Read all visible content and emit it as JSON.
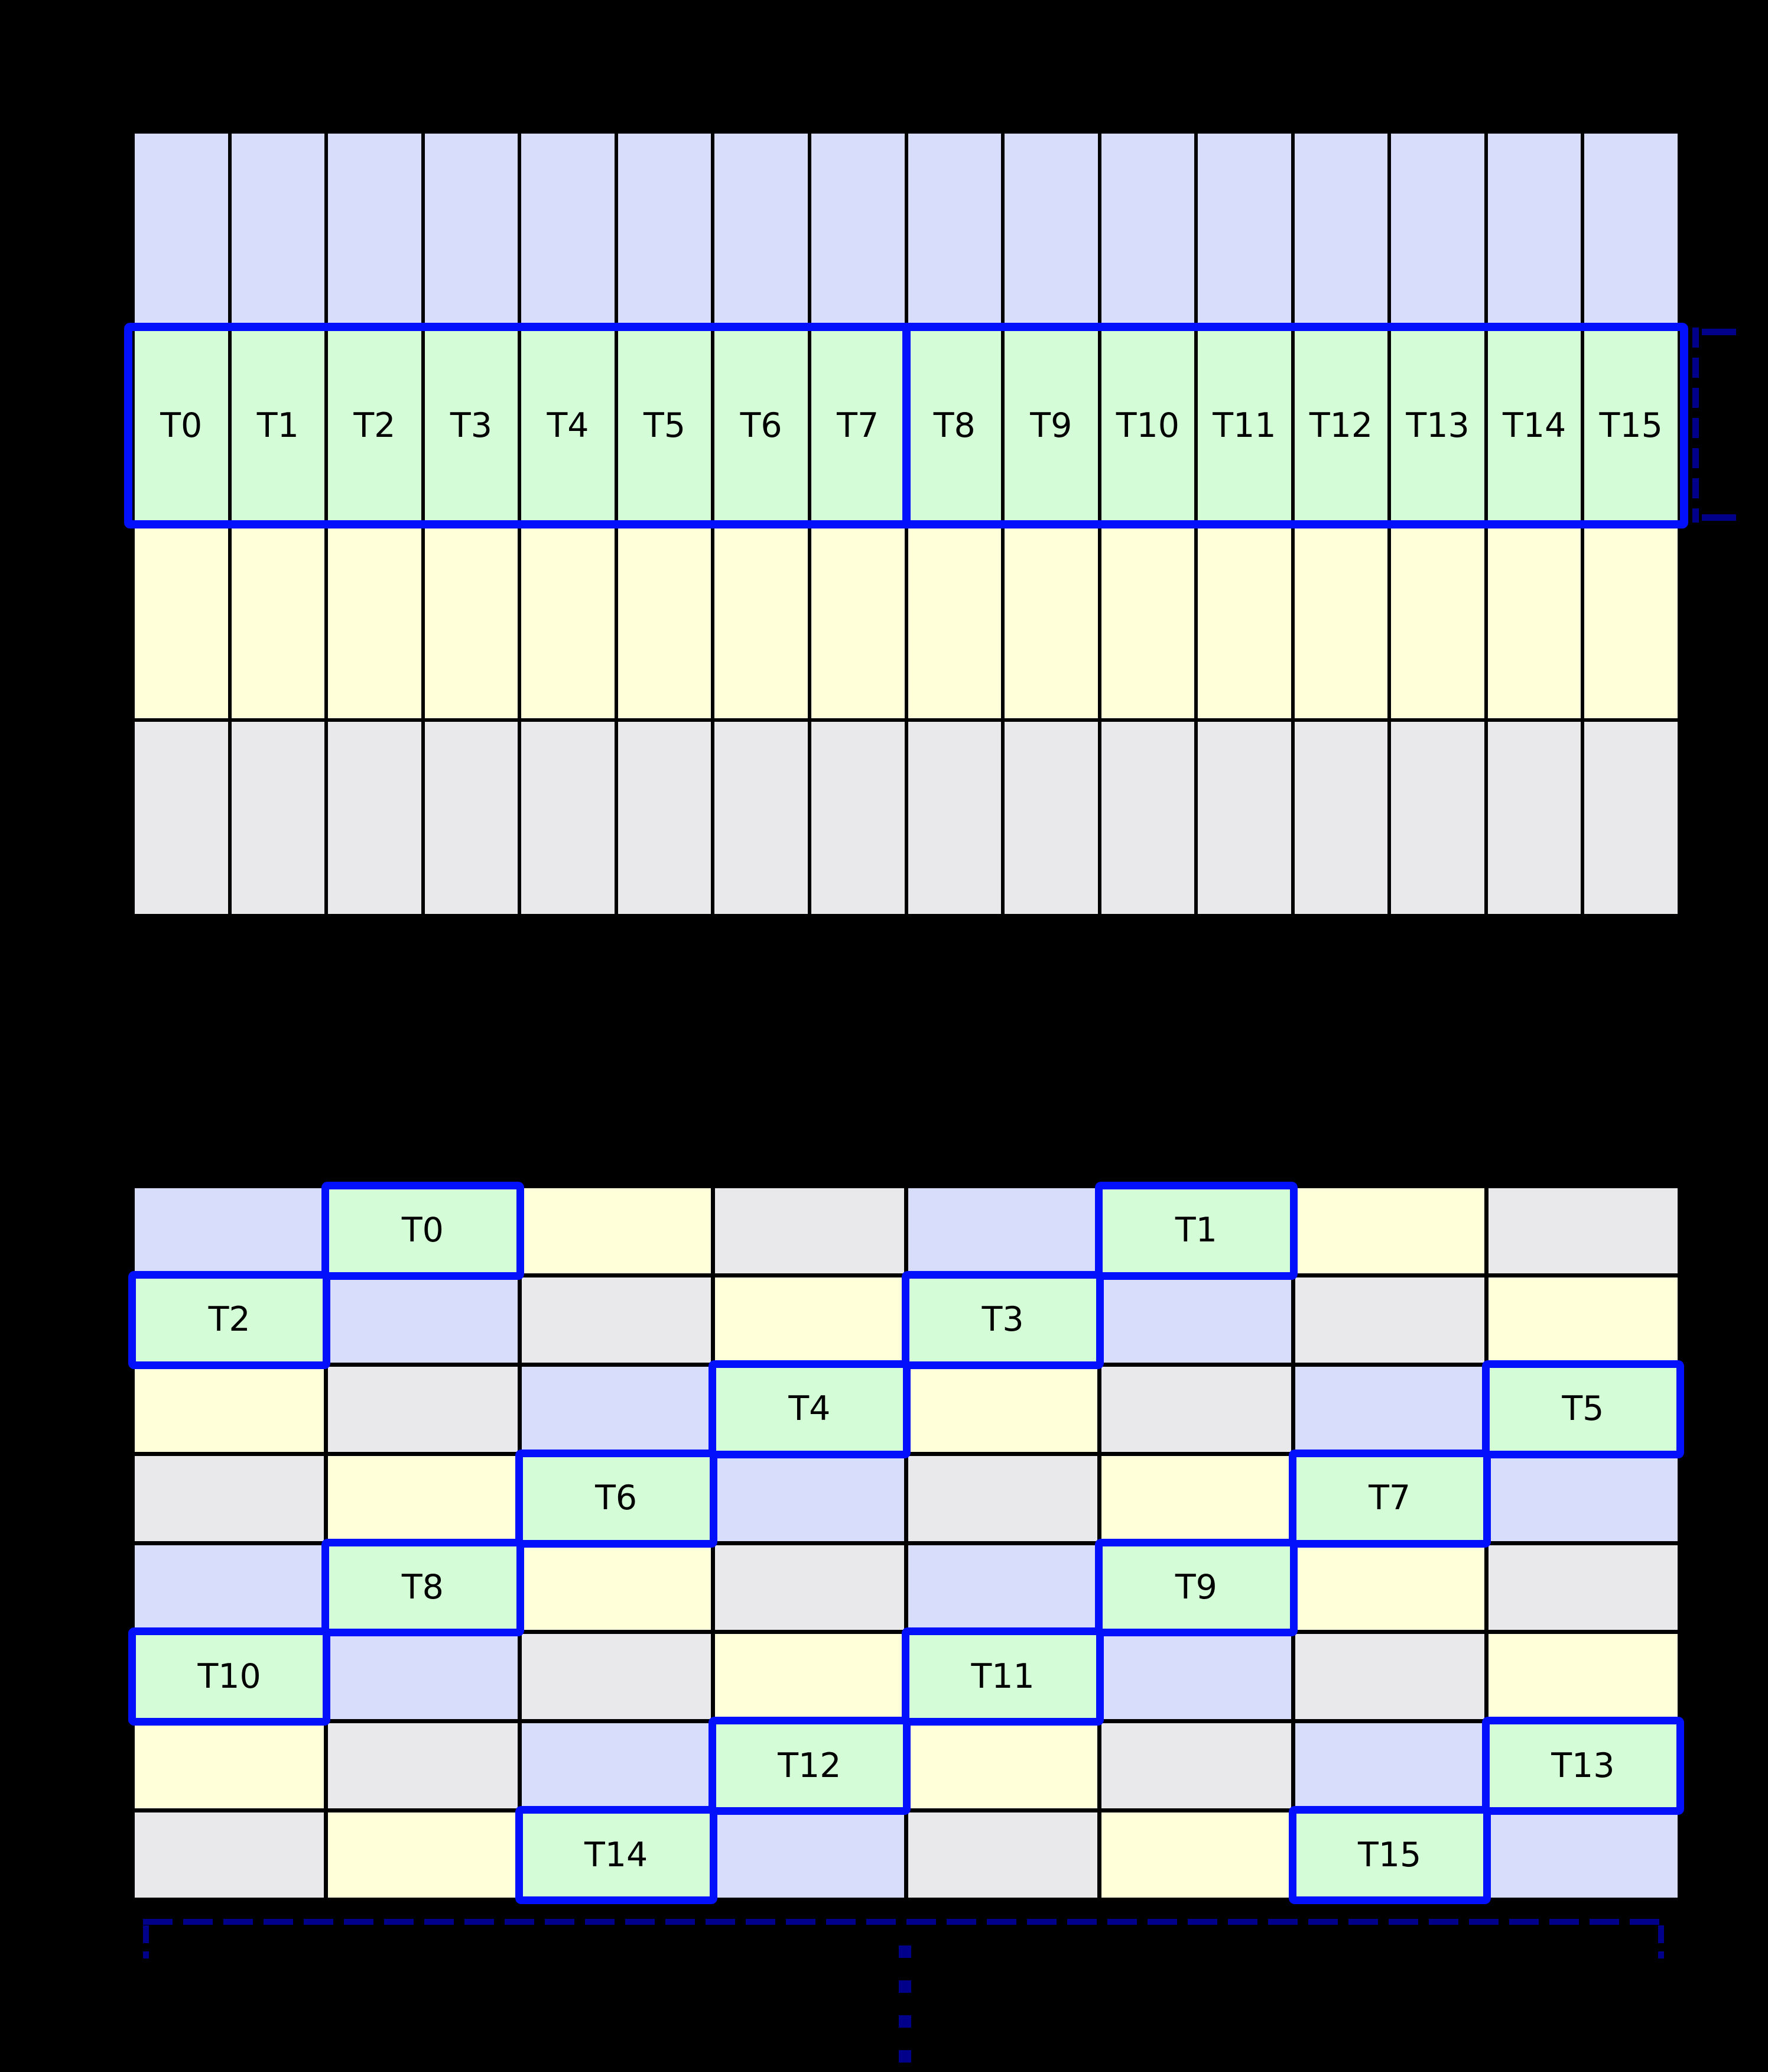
{
  "colors": {
    "background": "#000000",
    "grid_line": "#000000",
    "lavender": "#d8ddfb",
    "green": "#d4fcd7",
    "yellow": "#ffffda",
    "gray": "#e9e9ec",
    "highlight_border": "#0210fc",
    "annotation_navy": "#00008b",
    "label_text": "#000000"
  },
  "top_grid": {
    "rows": 4,
    "cols": 16,
    "row_colors": [
      "lavender",
      "green",
      "yellow",
      "gray"
    ],
    "thread_row_index": 1,
    "thread_labels": [
      "T0",
      "T1",
      "T2",
      "T3",
      "T4",
      "T5",
      "T6",
      "T7",
      "T8",
      "T9",
      "T10",
      "T11",
      "T12",
      "T13",
      "T14",
      "T15"
    ],
    "highlight": {
      "covers_row": 1,
      "split_after_label": "T7"
    },
    "right_bracket": {
      "style": "dashed",
      "spans": "thread-row-height"
    }
  },
  "bottom_grid": {
    "rows": 8,
    "cols": 8,
    "color_matrix": [
      [
        "lavender",
        "green",
        "yellow",
        "gray",
        "lavender",
        "green",
        "yellow",
        "gray"
      ],
      [
        "green",
        "lavender",
        "gray",
        "yellow",
        "green",
        "lavender",
        "gray",
        "yellow"
      ],
      [
        "yellow",
        "gray",
        "lavender",
        "green",
        "yellow",
        "gray",
        "lavender",
        "green"
      ],
      [
        "gray",
        "yellow",
        "green",
        "lavender",
        "gray",
        "yellow",
        "green",
        "lavender"
      ],
      [
        "lavender",
        "green",
        "yellow",
        "gray",
        "lavender",
        "green",
        "yellow",
        "gray"
      ],
      [
        "green",
        "lavender",
        "gray",
        "yellow",
        "green",
        "lavender",
        "gray",
        "yellow"
      ],
      [
        "yellow",
        "gray",
        "lavender",
        "green",
        "yellow",
        "gray",
        "lavender",
        "green"
      ],
      [
        "gray",
        "yellow",
        "green",
        "lavender",
        "gray",
        "yellow",
        "green",
        "lavender"
      ]
    ],
    "threads": [
      {
        "label": "T0",
        "row": 0,
        "col": 1
      },
      {
        "label": "T1",
        "row": 0,
        "col": 5
      },
      {
        "label": "T2",
        "row": 1,
        "col": 0
      },
      {
        "label": "T3",
        "row": 1,
        "col": 4
      },
      {
        "label": "T4",
        "row": 2,
        "col": 3
      },
      {
        "label": "T5",
        "row": 2,
        "col": 7
      },
      {
        "label": "T6",
        "row": 3,
        "col": 2
      },
      {
        "label": "T7",
        "row": 3,
        "col": 6
      },
      {
        "label": "T8",
        "row": 4,
        "col": 1
      },
      {
        "label": "T9",
        "row": 4,
        "col": 5
      },
      {
        "label": "T10",
        "row": 5,
        "col": 0
      },
      {
        "label": "T11",
        "row": 5,
        "col": 4
      },
      {
        "label": "T12",
        "row": 6,
        "col": 3
      },
      {
        "label": "T13",
        "row": 6,
        "col": 7
      },
      {
        "label": "T14",
        "row": 7,
        "col": 2
      },
      {
        "label": "T15",
        "row": 7,
        "col": 6
      }
    ],
    "bottom_bracket": {
      "style": "dashed",
      "spans": "grid-width",
      "continuation_dots_below_center": true
    }
  }
}
